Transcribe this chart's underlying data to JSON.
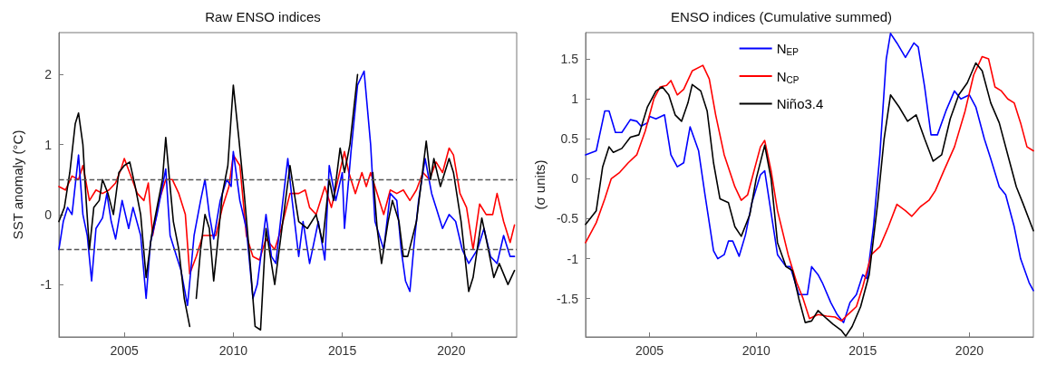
{
  "chart_data": [
    {
      "type": "line",
      "title": "Raw ENSO indices",
      "ylabel": "SST anomaly (°C)",
      "xlim": [
        2002,
        2023
      ],
      "ylim": [
        -1.75,
        2.6
      ],
      "xticks": [
        2005,
        2010,
        2015,
        2020
      ],
      "yticks": [
        -1,
        0,
        1,
        2
      ],
      "legend": false,
      "ref_lines": [
        {
          "axis": "y",
          "value": 0.5,
          "line_style": "dashed",
          "color": "#555555"
        },
        {
          "axis": "y",
          "value": -0.5,
          "line_style": "dashed",
          "color": "#555555"
        }
      ],
      "series": [
        {
          "color": "#ff0000",
          "x": [
            2002.0,
            2002.3,
            2002.6,
            2002.9,
            2003.1,
            2003.4,
            2003.7,
            2004.0,
            2004.3,
            2004.6,
            2004.85,
            2005.0,
            2005.3,
            2005.6,
            2005.9,
            2006.1,
            2006.3,
            2006.6,
            2006.9,
            2007.2,
            2007.5,
            2007.8,
            2008.0,
            2008.3,
            2008.6,
            2008.9,
            2009.2,
            2009.5,
            2009.8,
            2010.0,
            2010.3,
            2010.6,
            2010.9,
            2011.2,
            2011.5,
            2011.9,
            2012.2,
            2012.6,
            2013.0,
            2013.3,
            2013.5,
            2013.8,
            2014.2,
            2014.5,
            2014.8,
            2015.1,
            2015.3,
            2015.6,
            2015.9,
            2016.1,
            2016.3,
            2016.6,
            2016.9,
            2017.2,
            2017.5,
            2017.8,
            2018.1,
            2018.4,
            2018.7,
            2019.0,
            2019.3,
            2019.6,
            2019.9,
            2020.1,
            2020.4,
            2020.7,
            2021.0,
            2021.3,
            2021.6,
            2021.9,
            2022.1,
            2022.4,
            2022.7,
            2022.9
          ],
          "values": [
            0.4,
            0.35,
            0.55,
            0.5,
            0.7,
            0.2,
            0.35,
            0.3,
            0.35,
            0.45,
            0.65,
            0.8,
            0.55,
            0.3,
            0.2,
            0.45,
            -0.3,
            0.2,
            0.5,
            0.5,
            0.3,
            0.0,
            -0.85,
            -0.6,
            -0.3,
            -0.3,
            -0.3,
            0.1,
            0.4,
            0.85,
            0.7,
            -0.3,
            -0.6,
            -0.65,
            -0.35,
            -0.5,
            -0.2,
            0.3,
            0.3,
            0.35,
            0.1,
            0.0,
            0.4,
            0.1,
            0.5,
            0.9,
            0.6,
            0.3,
            0.6,
            0.4,
            0.6,
            0.3,
            0.0,
            0.35,
            0.3,
            0.35,
            0.2,
            0.35,
            0.6,
            0.5,
            0.75,
            0.6,
            0.95,
            0.85,
            0.3,
            0.1,
            -0.5,
            0.15,
            0.0,
            0.0,
            0.3,
            -0.1,
            -0.4,
            -0.15
          ]
        },
        {
          "color": "#0000ff",
          "x": [
            2002.0,
            2002.2,
            2002.4,
            2002.6,
            2002.9,
            2003.1,
            2003.3,
            2003.5,
            2003.7,
            2004.0,
            2004.2,
            2004.4,
            2004.6,
            2004.9,
            2005.2,
            2005.4,
            2005.75,
            2006.0,
            2006.2,
            2006.5,
            2006.9,
            2007.1,
            2007.4,
            2007.6,
            2007.9,
            2008.2,
            2008.5,
            2008.7,
            2008.9,
            2009.1,
            2009.4,
            2009.7,
            2009.9,
            2010.0,
            2010.3,
            2010.6,
            2010.9,
            2011.1,
            2011.5,
            2011.75,
            2011.95,
            2012.2,
            2012.5,
            2012.7,
            2013.0,
            2013.2,
            2013.5,
            2013.9,
            2014.2,
            2014.4,
            2014.7,
            2015.0,
            2015.1,
            2015.4,
            2015.7,
            2016.0,
            2016.3,
            2016.5,
            2016.7,
            2016.9,
            2017.2,
            2017.5,
            2017.7,
            2017.9,
            2018.1,
            2018.3,
            2018.5,
            2018.8,
            2019.1,
            2019.3,
            2019.6,
            2019.9,
            2020.2,
            2020.5,
            2020.8,
            2021.2,
            2021.5,
            2021.8,
            2022.1,
            2022.4,
            2022.7,
            2022.9
          ],
          "values": [
            -0.5,
            -0.1,
            0.1,
            0.0,
            0.85,
            0.0,
            -0.3,
            -0.95,
            -0.2,
            -0.05,
            0.3,
            -0.1,
            -0.35,
            0.2,
            -0.2,
            0.1,
            -0.3,
            -1.2,
            -0.4,
            0.0,
            0.65,
            -0.3,
            -0.6,
            -0.8,
            -1.3,
            -0.3,
            0.2,
            0.5,
            0.0,
            -0.35,
            0.2,
            0.5,
            0.4,
            0.9,
            0.2,
            -0.2,
            -1.2,
            -1.0,
            0.0,
            -0.6,
            -0.7,
            0.0,
            0.8,
            0.2,
            -0.6,
            -0.1,
            -0.7,
            -0.1,
            -0.65,
            0.7,
            0.2,
            0.6,
            -0.2,
            0.9,
            1.85,
            2.05,
            1.0,
            -0.1,
            -0.3,
            -0.5,
            0.3,
            0.2,
            -0.5,
            -0.95,
            -1.1,
            -0.4,
            0.2,
            0.8,
            0.3,
            0.1,
            -0.2,
            0.0,
            -0.1,
            -0.5,
            -0.7,
            -0.5,
            -0.2,
            -0.6,
            -0.7,
            -0.3,
            -0.6,
            -0.6
          ]
        },
        {
          "color": "#000000",
          "x": [
            2002.0,
            2002.25,
            2002.5,
            2002.75,
            2002.9,
            2003.1,
            2003.25,
            2003.4,
            2003.6,
            2003.85,
            2004.0,
            2004.25,
            2004.5,
            2004.75,
            2005.0,
            2005.25,
            2005.5,
            2005.75,
            2006.0,
            2006.25,
            2006.5,
            2006.75,
            2006.9,
            2007.1,
            2007.25,
            2007.5,
            2007.75,
            2008.0,
            2008.1,
            2008.3,
            2008.5,
            2008.7,
            2008.9,
            2009.1,
            2009.25,
            2009.5,
            2009.75,
            2010.0,
            2010.25,
            2010.5,
            2010.75,
            2011.0,
            2011.25,
            2011.5,
            2011.9,
            2012.6,
            2013.0,
            2013.4,
            2013.8,
            2014.1,
            2014.4,
            2014.6,
            2014.9,
            2015.1,
            2015.35,
            2015.7,
            2016.0,
            2016.1,
            2016.4,
            2016.6,
            2016.8,
            2017.1,
            2017.3,
            2017.6,
            2017.8,
            2018.0,
            2018.4,
            2018.6,
            2018.85,
            2019.05,
            2019.2,
            2019.5,
            2019.9,
            2020.1,
            2020.45,
            2020.8,
            2021.0,
            2021.4,
            2021.7,
            2021.95,
            2022.2,
            2022.6,
            2022.9
          ],
          "values": [
            -0.1,
            0.1,
            0.6,
            1.3,
            1.45,
            1.0,
            0.2,
            -0.5,
            0.1,
            0.2,
            0.5,
            0.3,
            0.0,
            0.6,
            0.7,
            0.75,
            0.4,
            0.0,
            -0.9,
            -0.3,
            0.1,
            0.5,
            1.1,
            0.4,
            -0.1,
            -0.5,
            -1.2,
            -1.6,
            null,
            -1.2,
            -0.5,
            0.0,
            -0.2,
            -0.95,
            -0.5,
            0.3,
            0.7,
            1.85,
            1.1,
            0.3,
            -0.6,
            -1.6,
            -1.65,
            -0.2,
            -1.0,
            0.7,
            -0.1,
            -0.2,
            0.0,
            -0.4,
            0.5,
            0.2,
            0.95,
            0.6,
            1.0,
            2.0,
            null,
            null,
            0.6,
            -0.2,
            -0.7,
            -0.1,
            0.2,
            -0.1,
            -0.6,
            -0.6,
            -0.1,
            0.4,
            1.05,
            0.5,
            0.8,
            0.4,
            0.8,
            0.6,
            -0.1,
            -1.1,
            -0.9,
            -0.05,
            -0.5,
            -0.9,
            -0.7,
            -1.0,
            -0.8
          ]
        }
      ]
    },
    {
      "type": "line",
      "title": "ENSO indices (Cumulative summed)",
      "ylabel": "(σ units)",
      "xlim": [
        2002,
        2023
      ],
      "ylim": [
        -1.98,
        1.83
      ],
      "xticks": [
        2005,
        2010,
        2015,
        2020
      ],
      "yticks": [
        -1.5,
        -1,
        -0.5,
        0,
        0.5,
        1,
        1.5
      ],
      "legend": "top",
      "series": [
        {
          "name": "N$_{EP}$",
          "color": "#0000ff",
          "x": [
            2002.0,
            2002.5,
            2002.9,
            2003.1,
            2003.4,
            2003.7,
            2004.1,
            2004.4,
            2004.6,
            2004.9,
            2005.0,
            2005.3,
            2005.7,
            2006.0,
            2006.3,
            2006.6,
            2006.9,
            2007.3,
            2007.6,
            2008.0,
            2008.2,
            2008.5,
            2008.7,
            2008.9,
            2009.2,
            2009.5,
            2009.8,
            2010.2,
            2010.4,
            2010.8,
            2011.0,
            2011.4,
            2011.6,
            2012.0,
            2012.4,
            2012.6,
            2012.9,
            2013.1,
            2013.5,
            2013.8,
            2014.1,
            2014.4,
            2014.7,
            2015.0,
            2015.2,
            2015.5,
            2015.8,
            2016.1,
            2016.3,
            2016.6,
            2017.0,
            2017.4,
            2017.6,
            2017.9,
            2018.2,
            2018.5,
            2018.9,
            2019.3,
            2019.6,
            2020.0,
            2020.3,
            2020.7,
            2021.0,
            2021.4,
            2021.7,
            2022.1,
            2022.4,
            2022.8,
            2023.0
          ],
          "values": [
            0.3,
            0.35,
            0.85,
            0.85,
            0.58,
            0.58,
            0.74,
            0.72,
            0.66,
            0.7,
            0.78,
            0.75,
            0.8,
            0.3,
            0.15,
            0.2,
            0.65,
            0.35,
            -0.2,
            -0.9,
            -1.0,
            -0.95,
            -0.78,
            -0.78,
            -0.97,
            -0.7,
            -0.3,
            0.05,
            0.1,
            -0.6,
            -0.95,
            -1.1,
            -1.1,
            -1.45,
            -1.45,
            -1.1,
            -1.2,
            -1.3,
            -1.55,
            -1.7,
            -1.8,
            -1.55,
            -1.45,
            -1.2,
            -1.25,
            -0.6,
            0.3,
            1.5,
            1.82,
            1.7,
            1.52,
            1.7,
            1.65,
            1.15,
            0.55,
            0.55,
            0.85,
            1.1,
            1.0,
            1.05,
            0.9,
            0.5,
            0.25,
            -0.1,
            -0.2,
            -0.6,
            -1.0,
            -1.3,
            -1.4
          ]
        },
        {
          "name": "N$_{CP}$",
          "color": "#ff0000",
          "x": [
            2002.0,
            2002.5,
            2002.9,
            2003.2,
            2003.6,
            2004.0,
            2004.4,
            2004.8,
            2005.2,
            2005.5,
            2005.8,
            2006.0,
            2006.3,
            2006.6,
            2007.0,
            2007.5,
            2007.8,
            2008.1,
            2008.5,
            2009.0,
            2009.3,
            2009.6,
            2009.9,
            2010.2,
            2010.4,
            2010.7,
            2011.0,
            2011.5,
            2011.9,
            2012.2,
            2012.5,
            2012.9,
            2013.3,
            2013.7,
            2014.0,
            2014.3,
            2014.7,
            2015.0,
            2015.4,
            2015.8,
            2016.2,
            2016.6,
            2017.0,
            2017.3,
            2017.7,
            2018.1,
            2018.4,
            2018.8,
            2019.3,
            2019.8,
            2020.2,
            2020.6,
            2020.9,
            2021.2,
            2021.5,
            2021.8,
            2022.1,
            2022.4,
            2022.7,
            2023.0
          ],
          "values": [
            -0.8,
            -0.55,
            -0.25,
            0.0,
            0.08,
            0.2,
            0.3,
            0.6,
            1.0,
            1.15,
            1.17,
            1.23,
            1.05,
            1.12,
            1.35,
            1.42,
            1.25,
            0.8,
            0.3,
            -0.1,
            -0.27,
            -0.2,
            0.1,
            0.4,
            0.48,
            0.1,
            -0.4,
            -0.95,
            -1.3,
            -1.5,
            -1.75,
            -1.7,
            -1.72,
            -1.73,
            -1.78,
            -1.7,
            -1.6,
            -1.35,
            -0.95,
            -0.85,
            -0.6,
            -0.32,
            -0.4,
            -0.47,
            -0.35,
            -0.27,
            -0.15,
            0.1,
            0.4,
            0.85,
            1.3,
            1.53,
            1.5,
            1.15,
            1.1,
            1.0,
            0.95,
            0.7,
            0.4,
            0.35
          ]
        },
        {
          "name": "Niño3.4",
          "color": "#000000",
          "x": [
            2002.0,
            2002.5,
            2002.8,
            2003.1,
            2003.3,
            2003.7,
            2004.1,
            2004.5,
            2004.9,
            2005.3,
            2005.6,
            2005.9,
            2006.2,
            2006.5,
            2006.8,
            2007.0,
            2007.4,
            2007.7,
            2008.0,
            2008.3,
            2008.7,
            2009.0,
            2009.3,
            2009.7,
            2010.0,
            2010.4,
            2010.7,
            2011.0,
            2011.4,
            2011.7,
            2012.0,
            2012.3,
            2012.6,
            2012.9,
            2013.3,
            2013.6,
            2014.0,
            2014.2,
            2014.5,
            2014.9,
            2015.3,
            2015.7,
            2016.0,
            2016.3,
            2016.7,
            2017.1,
            2017.5,
            2017.9,
            2018.3,
            2018.7,
            2019.1,
            2019.5,
            2019.9,
            2020.3,
            2020.6,
            2021.0,
            2021.4,
            2021.8,
            2022.2,
            2022.5,
            2023.0
          ],
          "values": [
            -0.57,
            -0.4,
            0.15,
            0.4,
            0.33,
            0.38,
            0.52,
            0.55,
            0.9,
            1.1,
            1.15,
            1.05,
            0.8,
            0.72,
            0.95,
            1.18,
            1.1,
            0.85,
            0.2,
            -0.25,
            -0.3,
            -0.6,
            -0.72,
            -0.45,
            0.0,
            0.42,
            0.0,
            -0.8,
            -1.1,
            -1.15,
            -1.5,
            -1.8,
            -1.78,
            -1.65,
            -1.75,
            -1.82,
            -1.9,
            -1.97,
            -1.85,
            -1.6,
            -1.2,
            -0.3,
            0.5,
            1.05,
            0.9,
            0.72,
            0.8,
            0.5,
            0.22,
            0.3,
            0.75,
            1.05,
            1.2,
            1.45,
            1.35,
            0.95,
            0.7,
            0.3,
            -0.1,
            -0.3,
            -0.65
          ]
        }
      ]
    }
  ]
}
